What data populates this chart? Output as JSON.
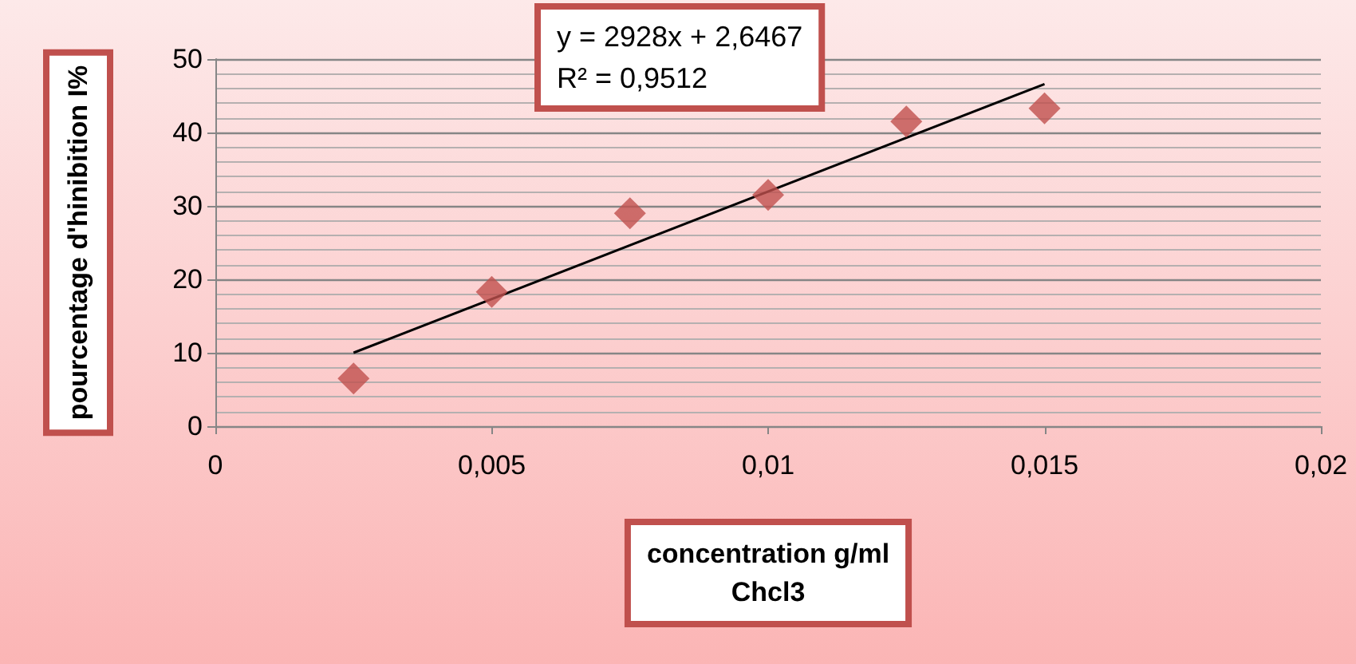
{
  "chart_data": {
    "type": "scatter",
    "xlabel": "concentration g/ml\nChcl3",
    "ylabel": "pourcentage d'hinibition I%",
    "annotations": [
      "y = 2928x + 2,6467\nR² = 0,9512"
    ],
    "series": [
      {
        "color": "#c0504d",
        "marker": "diamond",
        "x": [
          0.0025,
          0.005,
          0.0075,
          0.01,
          0.0125,
          0.015
        ],
        "values": [
          6.5,
          18.3,
          29,
          31.5,
          41.5,
          43.3
        ]
      },
      {
        "type": "line",
        "color": "#000000",
        "marker": "none",
        "x": [
          0.0025,
          0.015
        ],
        "values": [
          10,
          46.6
        ]
      }
    ],
    "xlim": [
      0,
      0.02
    ],
    "xticks": [
      0,
      {
        "value": 0.005,
        "label": "0,005"
      },
      {
        "value": 0.01,
        "label": "0,01"
      },
      {
        "value": 0.015,
        "label": "0,015"
      },
      {
        "value": 0.02,
        "label": "0,02"
      }
    ],
    "ylim": [
      0,
      50
    ],
    "yticks": [
      0,
      10,
      20,
      30,
      40,
      50
    ],
    "grid": "y"
  }
}
